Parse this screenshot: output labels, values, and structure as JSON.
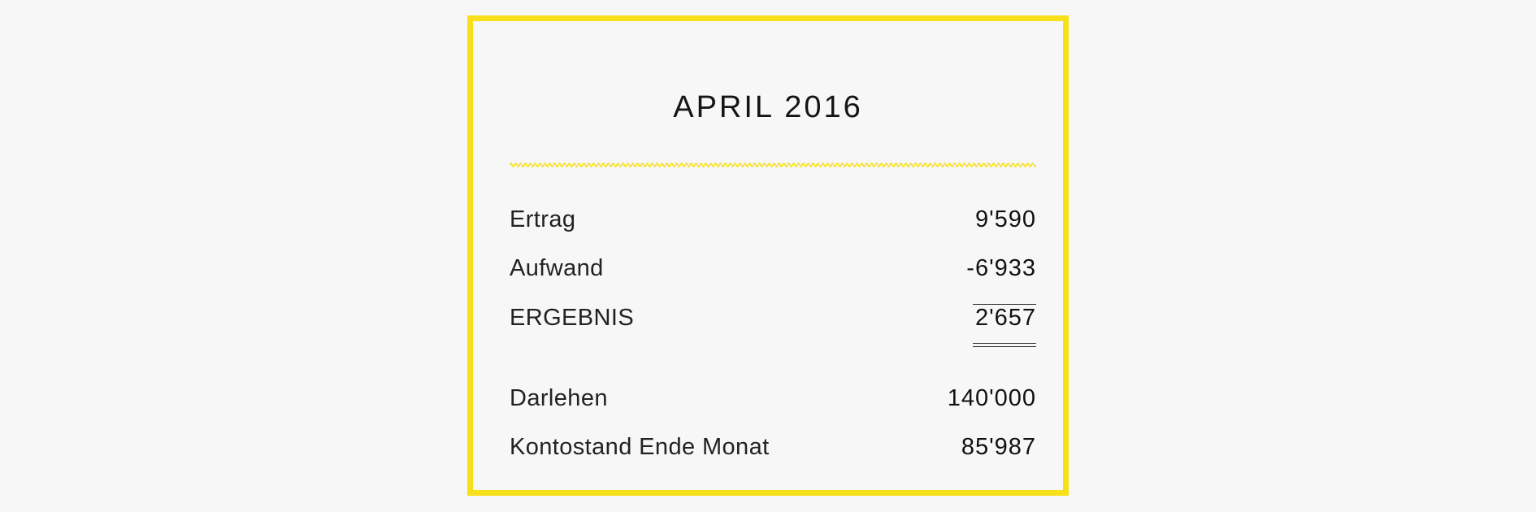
{
  "report": {
    "title": "APRIL 2016",
    "accent_color": "#f7e017",
    "rows": [
      {
        "label": "Ertrag",
        "value": "9'590"
      },
      {
        "label": "Aufwand",
        "value": "-6'933"
      },
      {
        "label": "ERGEBNIS",
        "value": "2'657"
      },
      {
        "label": "Darlehen",
        "value": "140'000"
      },
      {
        "label": "Kontostand Ende Monat",
        "value": "85'987"
      }
    ]
  }
}
